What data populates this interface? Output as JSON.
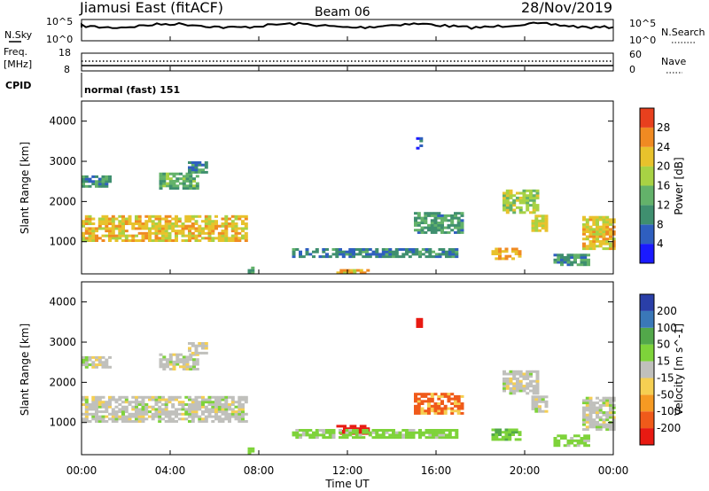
{
  "header": {
    "station_title": "Jiamusi East (fitACF)",
    "beam": "Beam 06",
    "date": "28/Nov/2019"
  },
  "noise_panel": {
    "left_label": "N.Sky",
    "right_label": "N.Search",
    "left_ticks": [
      "10^5",
      "10^0"
    ],
    "right_ticks": [
      "10^5",
      "10^0"
    ]
  },
  "freq_panel": {
    "left_label_1": "Freq.",
    "left_label_2": "[MHz]",
    "right_label": "Nave",
    "left_ticks": [
      "18",
      "8"
    ],
    "right_ticks": [
      "60",
      "0"
    ]
  },
  "cpid_panel": {
    "label": "CPID",
    "text": "normal (fast) 151"
  },
  "colors": {
    "power_scale": [
      "#1a1aff",
      "#2f5fbf",
      "#3f8f6f",
      "#63b26a",
      "#a8d244",
      "#e8c22c",
      "#f08a22",
      "#e8401e"
    ],
    "velocity_scale": [
      "#e81a12",
      "#f05a1a",
      "#f59a23",
      "#f5cf52",
      "#c0c0bc",
      "#7ed33a",
      "#52a84a",
      "#3a78b8",
      "#2a3fa8"
    ]
  },
  "chart_data": [
    {
      "type": "heatmap",
      "title": "",
      "xlabel": "",
      "ylabel": "Slant Range [km]",
      "ylim": [
        200,
        4500
      ],
      "yticks": [
        1000,
        2000,
        3000,
        4000
      ],
      "colorbar": {
        "label": "Power [dB]",
        "ticks": [
          4,
          8,
          12,
          16,
          20,
          24,
          28
        ],
        "range": [
          0,
          32
        ]
      },
      "blobs": [
        {
          "t0": 0,
          "t1": 7.5,
          "r0": 1000,
          "r1": 1650,
          "v": 22
        },
        {
          "t0": 0,
          "t1": 1.3,
          "r0": 2350,
          "r1": 2600,
          "v": 10
        },
        {
          "t0": 3.5,
          "t1": 5.3,
          "r0": 2300,
          "r1": 2700,
          "v": 13
        },
        {
          "t0": 4.8,
          "t1": 5.6,
          "r0": 2700,
          "r1": 3000,
          "v": 9
        },
        {
          "t0": 7.5,
          "t1": 7.7,
          "r0": 200,
          "r1": 350,
          "v": 12
        },
        {
          "t0": 11.5,
          "t1": 13.0,
          "r0": 200,
          "r1": 300,
          "v": 22
        },
        {
          "t0": 9.5,
          "t1": 17.0,
          "r0": 600,
          "r1": 800,
          "v": 9
        },
        {
          "t0": 15.0,
          "t1": 17.2,
          "r0": 1200,
          "r1": 1700,
          "v": 11
        },
        {
          "t0": 15.1,
          "t1": 15.3,
          "r0": 3300,
          "r1": 3600,
          "v": 7
        },
        {
          "t0": 18.5,
          "t1": 19.8,
          "r0": 550,
          "r1": 800,
          "v": 24
        },
        {
          "t0": 19.0,
          "t1": 20.5,
          "r0": 1700,
          "r1": 2300,
          "v": 18
        },
        {
          "t0": 20.3,
          "t1": 21.0,
          "r0": 1250,
          "r1": 1650,
          "v": 20
        },
        {
          "t0": 21.3,
          "t1": 22.8,
          "r0": 400,
          "r1": 700,
          "v": 10
        },
        {
          "t0": 22.6,
          "t1": 24.0,
          "r0": 800,
          "r1": 1600,
          "v": 22
        }
      ]
    },
    {
      "type": "heatmap",
      "title": "",
      "xlabel": "Time UT",
      "ylabel": "Slant Range [km]",
      "ylim": [
        200,
        4500
      ],
      "yticks": [
        1000,
        2000,
        3000,
        4000
      ],
      "xticks": [
        "00:00",
        "04:00",
        "08:00",
        "12:00",
        "16:00",
        "20:00",
        "00:00"
      ],
      "colorbar": {
        "label": "Velocity [m s^-1]",
        "ticks": [
          "200",
          "100",
          "50",
          "15",
          "-15",
          "-50",
          "-100",
          "-200"
        ]
      },
      "blobs": [
        {
          "t0": 0,
          "t1": 7.5,
          "r0": 1000,
          "r1": 1650,
          "v": 0
        },
        {
          "t0": 0,
          "t1": 1.3,
          "r0": 2350,
          "r1": 2600,
          "v": 0
        },
        {
          "t0": 3.5,
          "t1": 5.3,
          "r0": 2300,
          "r1": 2700,
          "v": 0
        },
        {
          "t0": 4.8,
          "t1": 5.6,
          "r0": 2700,
          "r1": 3000,
          "v": 0
        },
        {
          "t0": 7.5,
          "t1": 7.7,
          "r0": 200,
          "r1": 350,
          "v": 30
        },
        {
          "t0": 11.5,
          "t1": 13.0,
          "r0": 700,
          "r1": 900,
          "v": -150
        },
        {
          "t0": 9.5,
          "t1": 17.0,
          "r0": 600,
          "r1": 800,
          "v": 30
        },
        {
          "t0": 15.0,
          "t1": 17.2,
          "r0": 1200,
          "r1": 1700,
          "v": -60
        },
        {
          "t0": 15.1,
          "t1": 15.3,
          "r0": 3300,
          "r1": 3600,
          "v": -120
        },
        {
          "t0": 18.5,
          "t1": 19.8,
          "r0": 550,
          "r1": 800,
          "v": 40
        },
        {
          "t0": 19.0,
          "t1": 20.5,
          "r0": 1700,
          "r1": 2300,
          "v": 0
        },
        {
          "t0": 20.3,
          "t1": 21.0,
          "r0": 1250,
          "r1": 1650,
          "v": 0
        },
        {
          "t0": 21.3,
          "t1": 22.8,
          "r0": 400,
          "r1": 700,
          "v": 30
        },
        {
          "t0": 22.6,
          "t1": 24.0,
          "r0": 800,
          "r1": 1600,
          "v": 0
        }
      ]
    }
  ]
}
